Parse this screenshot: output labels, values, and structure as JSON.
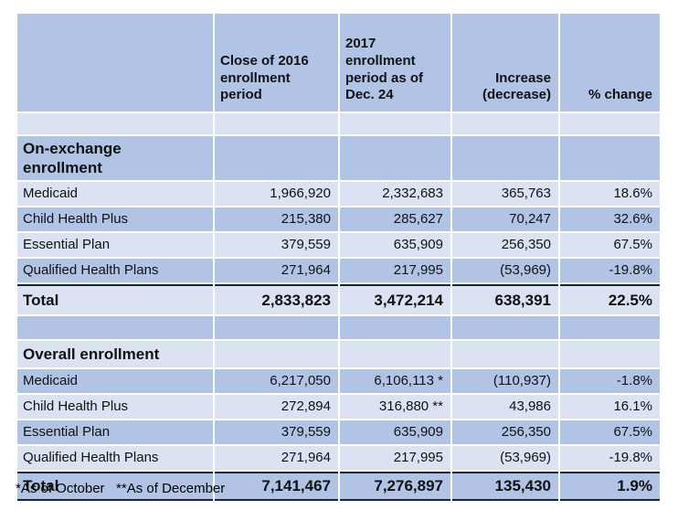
{
  "colors": {
    "row_blue": "#b1c4e6",
    "row_light": "#dbe3f3",
    "total_border": "#15243f",
    "background": "#ffffff"
  },
  "chart_data": {
    "type": "table",
    "title": "",
    "columns": [
      "",
      "Close of 2016 enrollment period",
      "2017 enrollment period as of Dec. 24",
      "Increase (decrease)",
      "% change"
    ],
    "sections": [
      {
        "name": "On-exchange enrollment",
        "rows": [
          [
            "Medicaid",
            "1,966,920",
            "2,332,683",
            "365,763",
            "18.6%"
          ],
          [
            "Child Health Plus",
            "215,380",
            "285,627",
            "70,247",
            "32.6%"
          ],
          [
            "Essential Plan",
            "379,559",
            "635,909",
            "256,350",
            "67.5%"
          ],
          [
            "Qualified Health Plans",
            "271,964",
            "217,995",
            "(53,969)",
            "-19.8%"
          ]
        ],
        "total": [
          "Total",
          "2,833,823",
          "3,472,214",
          "638,391",
          "22.5%"
        ]
      },
      {
        "name": "Overall enrollment",
        "rows": [
          [
            "Medicaid",
            "6,217,050",
            "6,106,113 *",
            "(110,937)",
            "-1.8%"
          ],
          [
            "Child Health Plus",
            "272,894",
            "316,880 **",
            "43,986",
            "16.1%"
          ],
          [
            "Essential Plan",
            "379,559",
            "635,909",
            "256,350",
            "67.5%"
          ],
          [
            "Qualified Health Plans",
            "271,964",
            "217,995",
            "(53,969)",
            "-19.8%"
          ]
        ],
        "total": [
          "Total",
          "7,141,467",
          "7,276,897",
          "135,430",
          "1.9%"
        ]
      }
    ],
    "footnote": "*As of October   **As of December",
    "layout": {
      "grid": "white cell separators",
      "legend": "none"
    }
  }
}
